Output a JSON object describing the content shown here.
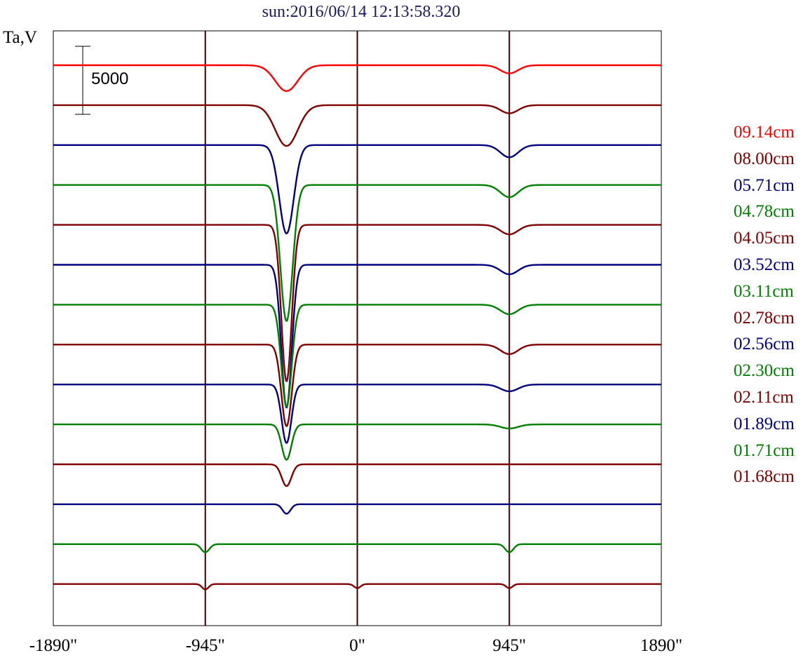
{
  "chart_data": {
    "type": "line",
    "title": "sun:2016/06/14 12:13:58.320",
    "ylabel": "Ta,V",
    "xlabel": "",
    "x_tick_labels": [
      "-1890\"",
      "-945\"",
      "0\"",
      "945\"",
      "1890\""
    ],
    "x_ticks": [
      -1890,
      -945,
      0,
      945,
      1890
    ],
    "xlim": [
      -1890,
      1890
    ],
    "vertical_lines": [
      -945,
      0,
      945
    ],
    "scale_bar": {
      "label": "5000",
      "value": 5000
    },
    "grid": false,
    "legend_position": "right",
    "series": [
      {
        "name": "09.14cm",
        "color": "#ff0000",
        "dips": [
          [
            -440,
            70,
            1900
          ],
          [
            945,
            55,
            600
          ]
        ]
      },
      {
        "name": "08.00cm",
        "color": "#800000",
        "dips": [
          [
            -440,
            70,
            3000
          ],
          [
            945,
            55,
            600
          ]
        ]
      },
      {
        "name": "05.71cm",
        "color": "#000080",
        "dips": [
          [
            -440,
            45,
            6500
          ],
          [
            945,
            55,
            900
          ]
        ]
      },
      {
        "name": "04.78cm",
        "color": "#008000",
        "dips": [
          [
            -440,
            38,
            10000
          ],
          [
            945,
            55,
            900
          ]
        ]
      },
      {
        "name": "04.05cm",
        "color": "#800000",
        "dips": [
          [
            -440,
            32,
            11500
          ],
          [
            945,
            55,
            700
          ]
        ]
      },
      {
        "name": "03.52cm",
        "color": "#000080",
        "dips": [
          [
            -440,
            32,
            10500
          ],
          [
            945,
            55,
            700
          ]
        ]
      },
      {
        "name": "03.11cm",
        "color": "#008000",
        "dips": [
          [
            -440,
            32,
            7500
          ],
          [
            945,
            55,
            700
          ]
        ]
      },
      {
        "name": "02.78cm",
        "color": "#800000",
        "dips": [
          [
            -440,
            32,
            6000
          ],
          [
            945,
            55,
            700
          ]
        ]
      },
      {
        "name": "02.56cm",
        "color": "#000080",
        "dips": [
          [
            -440,
            30,
            4300
          ],
          [
            945,
            55,
            500
          ]
        ]
      },
      {
        "name": "02.30cm",
        "color": "#008000",
        "dips": [
          [
            -440,
            30,
            2600
          ],
          [
            945,
            55,
            300
          ]
        ]
      },
      {
        "name": "02.11cm",
        "color": "#800000",
        "dips": [
          [
            -440,
            30,
            1600
          ]
        ]
      },
      {
        "name": "01.89cm",
        "color": "#000080",
        "dips": [
          [
            -440,
            25,
            700
          ]
        ]
      },
      {
        "name": "01.71cm",
        "color": "#008000",
        "dips": [
          [
            -945,
            25,
            600
          ],
          [
            945,
            25,
            600
          ]
        ]
      },
      {
        "name": "01.68cm",
        "color": "#800000",
        "dips": [
          [
            -945,
            20,
            400
          ],
          [
            0,
            20,
            300
          ],
          [
            945,
            20,
            300
          ]
        ]
      }
    ]
  }
}
